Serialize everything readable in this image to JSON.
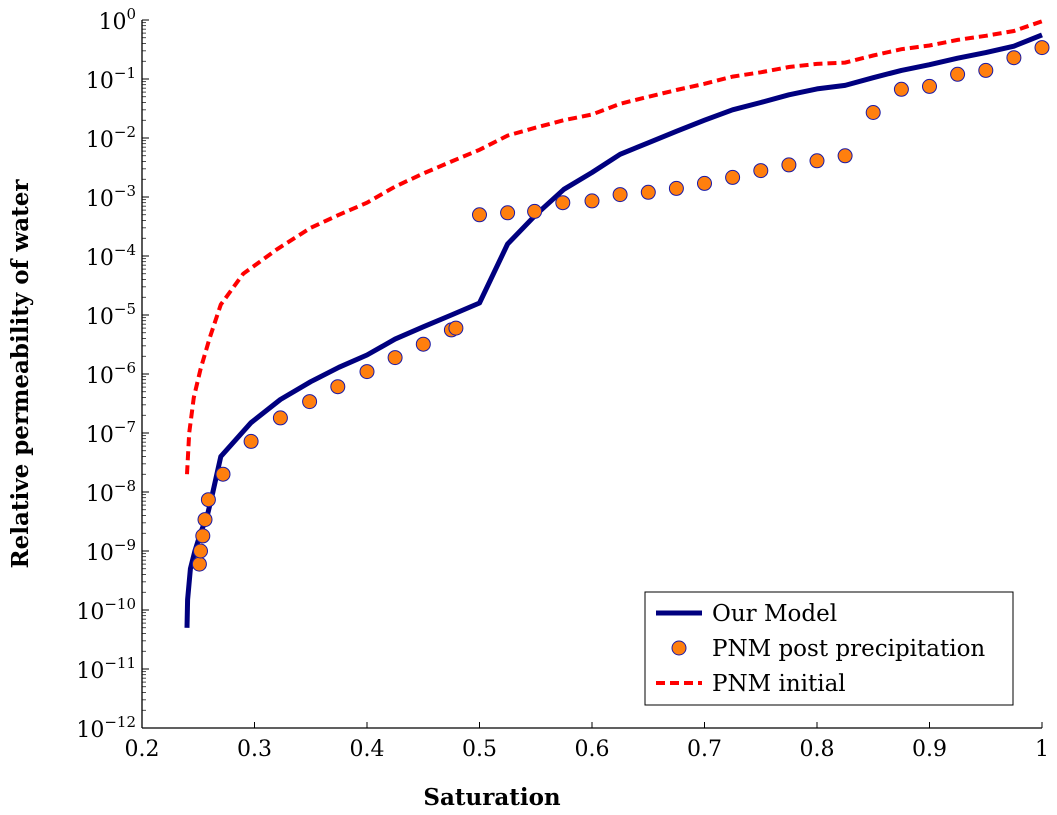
{
  "chart_data": {
    "type": "line",
    "xlabel": "Saturation",
    "ylabel": "Relative permeability of water",
    "xlim": [
      0.2,
      1.0
    ],
    "ylim": [
      1e-12,
      1
    ],
    "yscale": "log",
    "x_ticks": [
      "0.2",
      "0.3",
      "0.4",
      "0.5",
      "0.6",
      "0.7",
      "0.8",
      "0.9",
      "1"
    ],
    "y_tick_exponents": [
      "0",
      "−1",
      "−2",
      "−3",
      "−4",
      "−5",
      "−6",
      "−7",
      "−8",
      "−9",
      "−10",
      "−11",
      "−12"
    ],
    "y_tick_base": "10",
    "grid": false,
    "legend_position": "bottom-right",
    "series": [
      {
        "name": "Our Model",
        "style": "solid-line",
        "color": "#00007f",
        "x": [
          0.24,
          0.2405,
          0.243,
          0.247,
          0.252,
          0.258,
          0.263,
          0.27,
          0.297,
          0.323,
          0.35,
          0.375,
          0.4,
          0.425,
          0.45,
          0.475,
          0.5,
          0.525,
          0.55,
          0.575,
          0.6,
          0.625,
          0.65,
          0.675,
          0.7,
          0.725,
          0.75,
          0.775,
          0.8,
          0.825,
          0.85,
          0.875,
          0.9,
          0.925,
          0.95,
          0.975,
          1.0
        ],
        "y": [
          5e-11,
          1.5e-10,
          5e-10,
          1e-09,
          2e-09,
          4e-09,
          1e-08,
          4e-08,
          1.5e-07,
          3.7e-07,
          7.4e-07,
          1.3e-06,
          2.1e-06,
          3.9e-06,
          6.3e-06,
          1e-05,
          1.6e-05,
          0.00016,
          0.0005,
          0.00135,
          0.0026,
          0.0053,
          0.0083,
          0.013,
          0.02,
          0.03,
          0.04,
          0.054,
          0.068,
          0.078,
          0.105,
          0.14,
          0.175,
          0.225,
          0.28,
          0.36,
          0.56
        ]
      },
      {
        "name": "PNM post precipitation",
        "style": "circle-markers",
        "color": "#ff7f0e",
        "edge_color": "#1a1aa6",
        "x": [
          0.251,
          0.252,
          0.254,
          0.256,
          0.259,
          0.272,
          0.297,
          0.323,
          0.349,
          0.374,
          0.4,
          0.425,
          0.45,
          0.475,
          0.479,
          0.5,
          0.525,
          0.549,
          0.574,
          0.6,
          0.625,
          0.65,
          0.675,
          0.7,
          0.725,
          0.75,
          0.775,
          0.8,
          0.825,
          0.85,
          0.875,
          0.9,
          0.925,
          0.95,
          0.975,
          1.0
        ],
        "y": [
          6e-10,
          1e-09,
          1.8e-09,
          3.4e-09,
          7.4e-09,
          2e-08,
          7.2e-08,
          1.8e-07,
          3.4e-07,
          6.1e-07,
          1.1e-06,
          1.9e-06,
          3.2e-06,
          5.6e-06,
          6e-06,
          0.0005,
          0.00054,
          0.00057,
          0.0008,
          0.00086,
          0.0011,
          0.0012,
          0.0014,
          0.0017,
          0.00215,
          0.0028,
          0.0035,
          0.0041,
          0.005,
          0.027,
          0.067,
          0.075,
          0.12,
          0.14,
          0.23,
          0.34
        ]
      },
      {
        "name": "PNM initial",
        "style": "dashed-line",
        "color": "#ff0000",
        "x": [
          0.24,
          0.242,
          0.246,
          0.252,
          0.26,
          0.27,
          0.29,
          0.32,
          0.35,
          0.375,
          0.4,
          0.425,
          0.45,
          0.475,
          0.5,
          0.525,
          0.55,
          0.575,
          0.6,
          0.625,
          0.65,
          0.675,
          0.7,
          0.725,
          0.75,
          0.775,
          0.8,
          0.825,
          0.85,
          0.875,
          0.9,
          0.925,
          0.95,
          0.975,
          1.0
        ],
        "y": [
          2e-08,
          1e-07,
          4e-07,
          1.2e-06,
          4e-06,
          1.5e-05,
          5e-05,
          0.00013,
          0.0003,
          0.0005,
          0.0008,
          0.0015,
          0.0025,
          0.004,
          0.0063,
          0.011,
          0.015,
          0.02,
          0.025,
          0.038,
          0.05,
          0.065,
          0.083,
          0.11,
          0.13,
          0.16,
          0.18,
          0.19,
          0.25,
          0.32,
          0.37,
          0.46,
          0.54,
          0.65,
          0.95
        ]
      }
    ]
  }
}
